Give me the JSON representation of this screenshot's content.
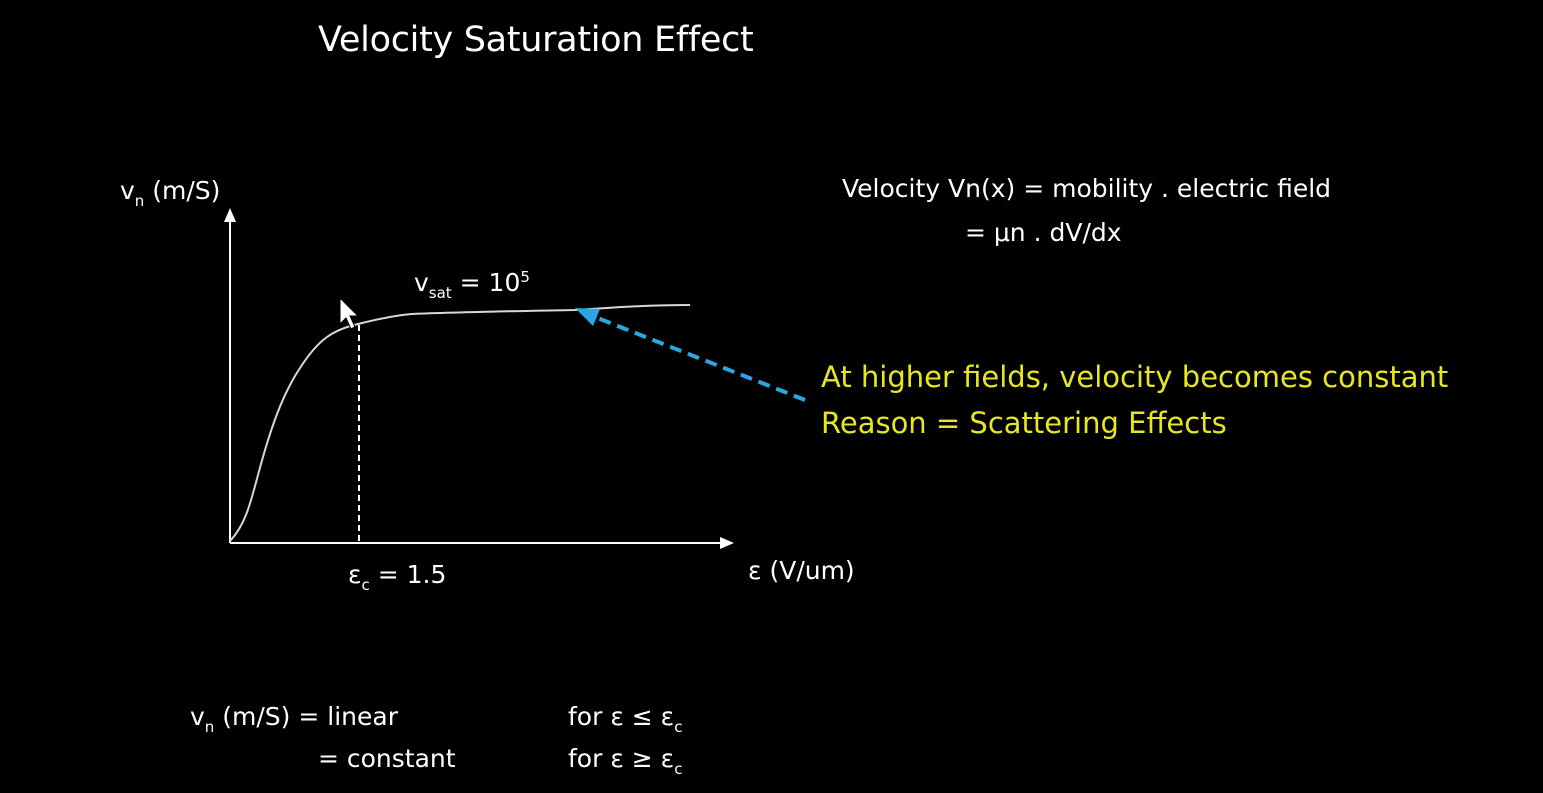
{
  "title": "Velocity Saturation Effect",
  "graph": {
    "y_axis_label": {
      "symbol": "v",
      "sub": "n",
      "unit": "(m/S)"
    },
    "x_axis_label": "ε (V/um)",
    "vsat_label": {
      "symbol": "v",
      "sub": "sat",
      "eq": "= 10",
      "sup": "5"
    },
    "ec_label": {
      "symbol": "ε",
      "sub": "c",
      "eq": "= 1.5"
    },
    "curve_color": "#d8d8d8",
    "arrow_color": "#2aa7e0"
  },
  "formula": {
    "line1": "Velocity Vn(x) = mobility . electric field",
    "line2": "= μn . dV/dx"
  },
  "note": {
    "line1": "At higher fields, velocity becomes constant",
    "line2": "Reason = Scattering Effects",
    "color": "#e8e61e"
  },
  "piecewise": {
    "lhs": {
      "symbol": "v",
      "sub": "n",
      "unit": "(m/S)"
    },
    "row1_value": "= linear",
    "row1_cond": {
      "text": "for ε ≤ ε",
      "sub": "c"
    },
    "row2_value": "= constant",
    "row2_cond": {
      "text": "for ε ≥ ε",
      "sub": "c"
    }
  }
}
